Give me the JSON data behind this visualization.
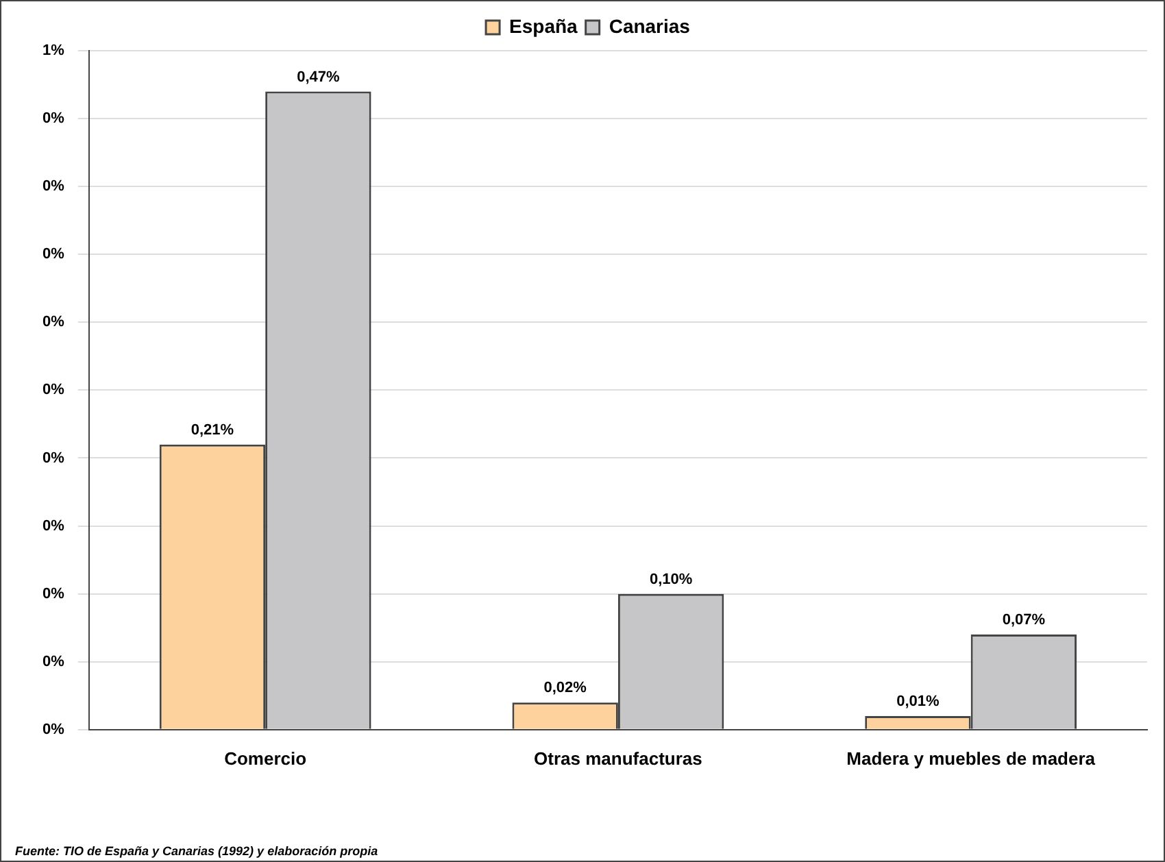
{
  "chart_data": {
    "type": "bar",
    "categories": [
      "Comercio",
      "Otras manufacturas",
      "Madera y muebles de madera"
    ],
    "series": [
      {
        "name": "España",
        "color": "#fdd29c",
        "values": [
          0.21,
          0.02,
          0.01
        ],
        "value_labels": [
          "0,21%",
          "0,02%",
          "0,01%"
        ]
      },
      {
        "name": "Canarias",
        "color": "#c6c6c8",
        "values": [
          0.47,
          0.1,
          0.07
        ],
        "value_labels": [
          "0,47%",
          "0,10%",
          "0,07%"
        ]
      }
    ],
    "ylim": [
      0,
      0.5
    ],
    "yticks": [
      {
        "value": 0,
        "label": "0%"
      },
      {
        "value": 0.05,
        "label": "0%"
      },
      {
        "value": 0.1,
        "label": "0%"
      },
      {
        "value": 0.15,
        "label": "0%"
      },
      {
        "value": 0.2,
        "label": "0%"
      },
      {
        "value": 0.25,
        "label": "0%"
      },
      {
        "value": 0.3,
        "label": "0%"
      },
      {
        "value": 0.35,
        "label": "0%"
      },
      {
        "value": 0.4,
        "label": "0%"
      },
      {
        "value": 0.45,
        "label": "0%"
      },
      {
        "value": 0.5,
        "label": "1%"
      }
    ],
    "grid": "y",
    "legend": "top",
    "annotations": [
      "Fuente: TIO de España y Canarias (1992) y elaboración propia"
    ]
  }
}
